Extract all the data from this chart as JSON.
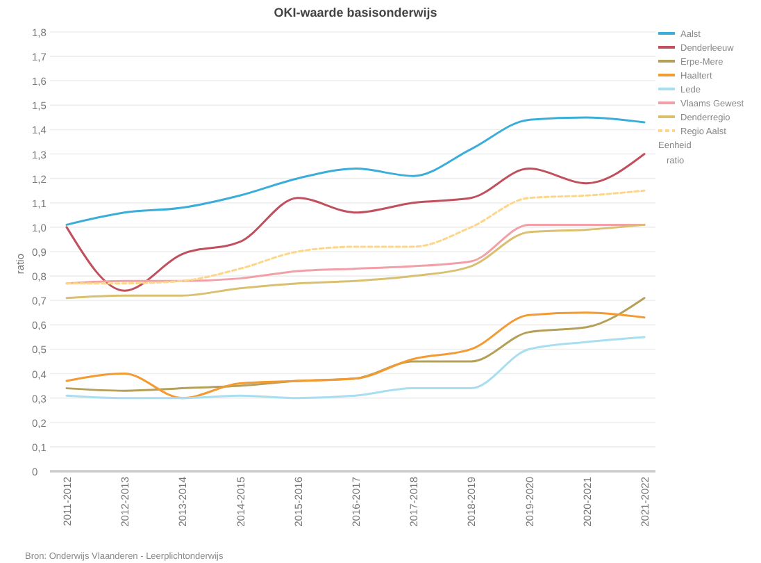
{
  "chart_data": {
    "type": "line",
    "title": "OKI-waarde basisonderwijs",
    "ylabel": "ratio",
    "legend_title": "Eenheid",
    "annotations": [
      "ratio",
      "Bron: Onderwijs Vlaanderen - Leerplichtonderwijs"
    ],
    "categories": [
      "2011-2012",
      "2012-2013",
      "2013-2014",
      "2014-2015",
      "2015-2016",
      "2016-2017",
      "2017-2018",
      "2018-2019",
      "2019-2020",
      "2020-2021",
      "2021-2022"
    ],
    "series": [
      {
        "name": "Aalst",
        "color": "#3aaed8",
        "values": [
          1.01,
          1.06,
          1.08,
          1.13,
          1.2,
          1.24,
          1.21,
          1.32,
          1.44,
          1.45,
          1.43
        ]
      },
      {
        "name": "Denderleeuw",
        "color": "#c0505e",
        "values": [
          1.0,
          0.74,
          0.89,
          0.94,
          1.12,
          1.06,
          1.1,
          1.12,
          1.24,
          1.18,
          1.3
        ]
      },
      {
        "name": "Erpe-Mere",
        "color": "#b5a05a",
        "values": [
          0.34,
          0.33,
          0.34,
          0.35,
          0.37,
          0.38,
          0.45,
          0.45,
          0.57,
          0.59,
          0.71
        ]
      },
      {
        "name": "Haaltert",
        "color": "#f39a32",
        "values": [
          0.37,
          0.4,
          0.3,
          0.36,
          0.37,
          0.38,
          0.46,
          0.5,
          0.64,
          0.65,
          0.63
        ]
      },
      {
        "name": "Lede",
        "color": "#a8def0",
        "values": [
          0.31,
          0.3,
          0.3,
          0.31,
          0.3,
          0.31,
          0.34,
          0.34,
          0.5,
          0.53,
          0.55
        ]
      },
      {
        "name": "Vlaams Gewest",
        "color": "#f2a0a8",
        "values": [
          0.77,
          0.78,
          0.78,
          0.79,
          0.82,
          0.83,
          0.84,
          0.86,
          1.01,
          1.01,
          1.01
        ]
      },
      {
        "name": "Denderregio",
        "color": "#d9c070",
        "values": [
          0.71,
          0.72,
          0.72,
          0.75,
          0.77,
          0.78,
          0.8,
          0.84,
          0.98,
          0.99,
          1.01
        ]
      },
      {
        "name": "Regio Aalst",
        "color": "#fdd68a",
        "line_style": "dashed",
        "values": [
          0.77,
          0.77,
          0.78,
          0.83,
          0.9,
          0.92,
          0.92,
          1.0,
          1.12,
          1.13,
          1.15
        ]
      }
    ],
    "ylim": [
      0,
      1.8
    ],
    "yticks": [
      0,
      {
        "value": 0.1,
        "label": "0,1"
      },
      {
        "value": 0.2,
        "label": "0,2"
      },
      {
        "value": 0.3,
        "label": "0,3"
      },
      {
        "value": 0.4,
        "label": "0,4"
      },
      {
        "value": 0.5,
        "label": "0,5"
      },
      {
        "value": 0.6,
        "label": "0,6"
      },
      {
        "value": 0.7,
        "label": "0,7"
      },
      {
        "value": 0.8,
        "label": "0,8"
      },
      {
        "value": 0.9,
        "label": "0,9"
      },
      {
        "value": 1.0,
        "label": "1,0"
      },
      {
        "value": 1.1,
        "label": "1,1"
      },
      {
        "value": 1.2,
        "label": "1,2"
      },
      {
        "value": 1.3,
        "label": "1,3"
      },
      {
        "value": 1.4,
        "label": "1,4"
      },
      {
        "value": 1.5,
        "label": "1,5"
      },
      {
        "value": 1.6,
        "label": "1,6"
      },
      {
        "value": 1.7,
        "label": "1,7"
      },
      {
        "value": 1.8,
        "label": "1,8"
      }
    ],
    "grid": "y",
    "legend": "right",
    "line_style": "solid"
  }
}
